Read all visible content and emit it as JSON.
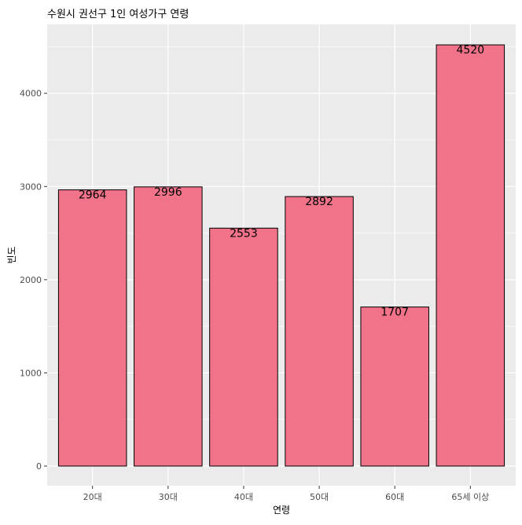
{
  "chart_data": {
    "type": "bar",
    "title": "수원시 권선구 1인 여성가구 연령",
    "xlabel": "연령",
    "ylabel": "빈도",
    "categories": [
      "20대",
      "30대",
      "40대",
      "50대",
      "60대",
      "65세 이상"
    ],
    "values": [
      2964,
      2996,
      2553,
      2892,
      1707,
      4520
    ],
    "data_labels": [
      "2964",
      "2996",
      "2553",
      "2892",
      "1707",
      "4520"
    ],
    "ylim": [
      0,
      4740
    ],
    "y_ticks": [
      0,
      1000,
      2000,
      3000,
      4000
    ],
    "y_tick_labels": [
      "0",
      "1000",
      "2000",
      "3000",
      "4000"
    ],
    "grid": true,
    "legend": "none",
    "colors": {
      "bar_fill": "#F07389",
      "bar_stroke": "#000000",
      "panel_background": "#EBEBEB",
      "grid_major": "#FFFFFF",
      "text": "#000000",
      "axis_text": "#4D4D4D"
    }
  }
}
